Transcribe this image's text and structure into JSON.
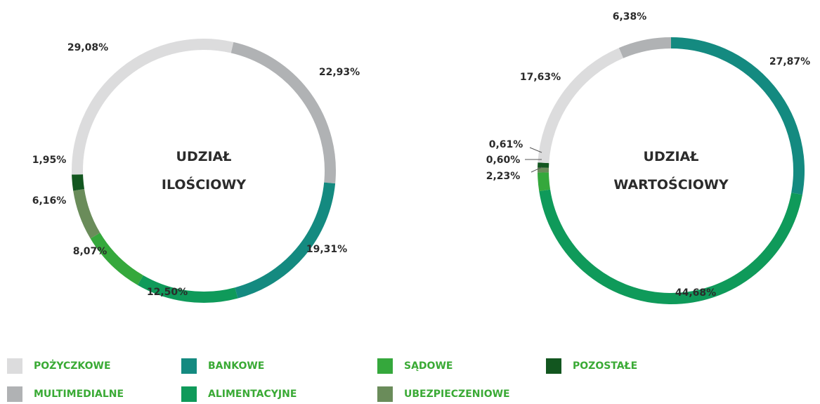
{
  "chart_data": [
    {
      "type": "pie",
      "title": "UDZIAŁ ILOŚCIOWY",
      "categories": [
        "MULTIMEDIALNE",
        "BANKOWE",
        "ALIMENTACYJNE",
        "SĄDOWE",
        "UBEZPIECZENIOWE",
        "POZOSTAŁE",
        "POŻYCZKOWE"
      ],
      "values": [
        22.93,
        19.31,
        12.5,
        8.07,
        6.16,
        1.95,
        29.08
      ],
      "value_labels": [
        "22,93%",
        "19,31%",
        "12,50%",
        "8,07%",
        "6,16%",
        "1,95%",
        "29,08%"
      ]
    },
    {
      "type": "pie",
      "title": "UDZIAŁ WARTOŚCIOWY",
      "categories": [
        "BANKOWE",
        "ALIMENTACYJNE",
        "SĄDOWE",
        "UBEZPIECZENIOWE",
        "POZOSTAŁE",
        "POŻYCZKOWE",
        "MULTIMEDIALNE"
      ],
      "values": [
        27.87,
        44.68,
        2.23,
        0.6,
        0.61,
        17.63,
        6.38
      ],
      "value_labels": [
        "27,87%",
        "44,68%",
        "2,23%",
        "0,60%",
        "0,61%",
        "17,63%",
        "6,38%"
      ]
    }
  ],
  "legend": [
    {
      "name": "POŻYCZKOWE",
      "color": "#dcdcdd"
    },
    {
      "name": "BANKOWE",
      "color": "#148a80"
    },
    {
      "name": "SĄDOWE",
      "color": "#35a83c"
    },
    {
      "name": "POZOSTAŁE",
      "color": "#12561f"
    },
    {
      "name": "MULTIMEDIALNE",
      "color": "#b0b2b4"
    },
    {
      "name": "ALIMENTACYJNE",
      "color": "#0f9a5a"
    },
    {
      "name": "UBEZPIECZENIOWE",
      "color": "#6a8c5a"
    }
  ]
}
